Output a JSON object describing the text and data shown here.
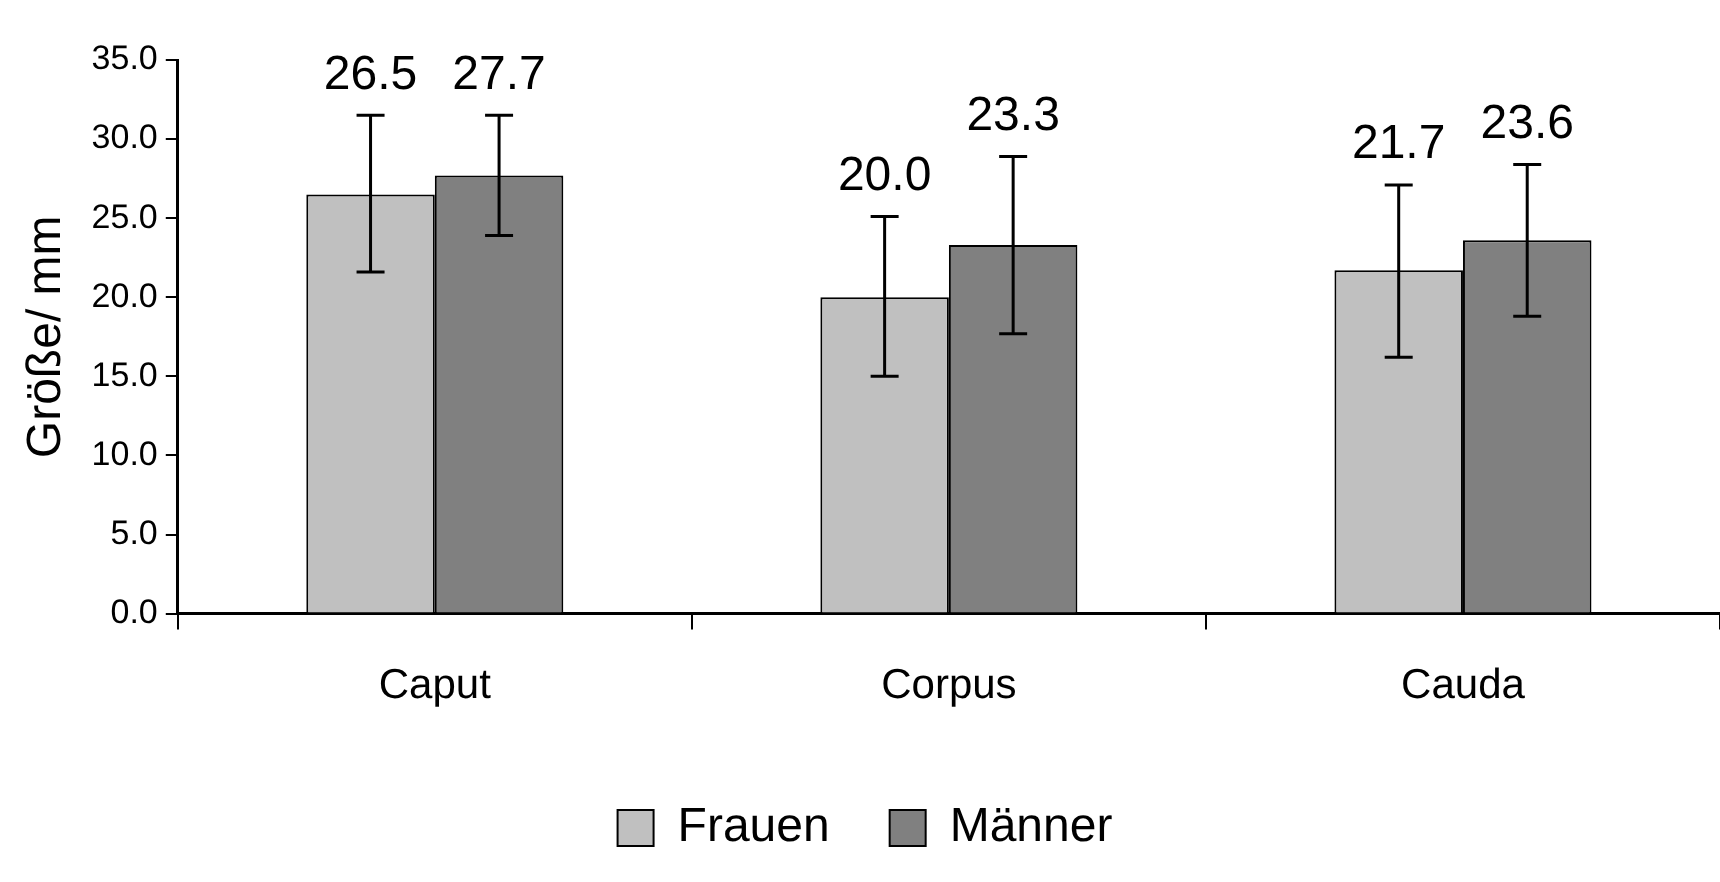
{
  "chart_data": {
    "type": "bar",
    "ylabel": "Größe/ mm",
    "categories": [
      "Caput",
      "Corpus",
      "Cauda"
    ],
    "series": [
      {
        "name": "Frauen",
        "color": "#c0c0c0",
        "values": [
          26.5,
          20.0,
          21.7
        ],
        "value_labels": [
          "26.5",
          "20.0",
          "21.7"
        ],
        "errors": [
          [
            21.6,
            31.5
          ],
          [
            15.0,
            25.1
          ],
          [
            16.2,
            27.1
          ]
        ]
      },
      {
        "name": "Männer",
        "color": "#808080",
        "values": [
          27.7,
          23.3,
          23.6
        ],
        "value_labels": [
          "27.7",
          "23.3",
          "23.6"
        ],
        "errors": [
          [
            23.9,
            31.5
          ],
          [
            17.7,
            28.9
          ],
          [
            18.8,
            28.4
          ]
        ]
      }
    ],
    "ylim": [
      0,
      35
    ],
    "yticks": [
      {
        "value": 0,
        "label": "0.0"
      },
      {
        "value": 5,
        "label": "5.0"
      },
      {
        "value": 10,
        "label": "10.0"
      },
      {
        "value": 15,
        "label": "15.0"
      },
      {
        "value": 20,
        "label": "20.0"
      },
      {
        "value": 25,
        "label": "25.0"
      },
      {
        "value": 30,
        "label": "30.0"
      },
      {
        "value": 35,
        "label": "35.0"
      }
    ],
    "grid": false,
    "legend": "bottom"
  }
}
